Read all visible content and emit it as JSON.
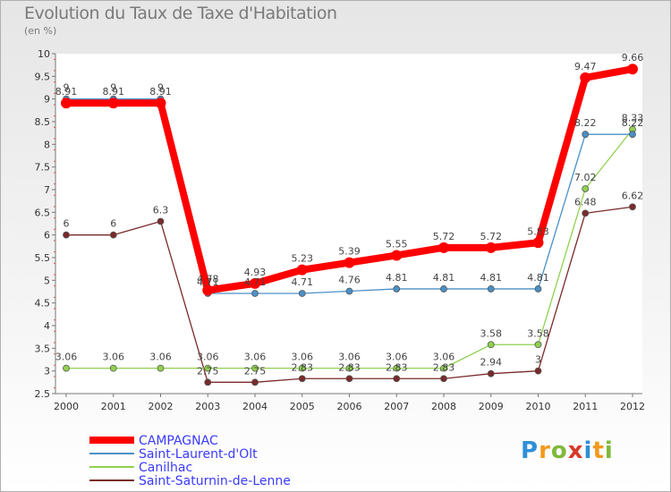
{
  "title": "Evolution du Taux de Taxe d'Habitation",
  "subtitle": "(en %)",
  "logo": "Proxiti",
  "chart_data": {
    "type": "line",
    "title": "Evolution du Taux de Taxe d'Habitation",
    "ylabel": "(en %)",
    "ylim": [
      2.5,
      10
    ],
    "grid": false,
    "legend_position": "bottom-left",
    "categories": [
      "2000",
      "2001",
      "2002",
      "2003",
      "2004",
      "2005",
      "2006",
      "2007",
      "2008",
      "2009",
      "2010",
      "2011",
      "2012"
    ],
    "yticks": [
      "2.5",
      "3",
      "3.5",
      "4",
      "4.5",
      "5",
      "5.5",
      "6",
      "6.5",
      "7",
      "7.5",
      "8",
      "8.5",
      "9",
      "9.5",
      "10"
    ],
    "series": [
      {
        "name": "CAMPAGNAC",
        "color": "#ff0000",
        "values": [
          8.91,
          8.91,
          8.91,
          4.78,
          4.93,
          5.23,
          5.39,
          5.55,
          5.72,
          5.72,
          5.83,
          9.47,
          9.66
        ],
        "labels": [
          "8.91",
          "8.91",
          "8.91",
          "4.78",
          "4.93",
          "5.23",
          "5.39",
          "5.55",
          "5.72",
          "5.72",
          "5.83",
          "9.47",
          "9.66"
        ]
      },
      {
        "name": "Saint-Laurent-d'Olt",
        "color": "#4a90c8",
        "values": [
          9,
          9,
          9,
          4.71,
          4.71,
          4.71,
          4.76,
          4.81,
          4.81,
          4.81,
          4.81,
          8.22,
          8.22
        ],
        "labels": [
          "9",
          "9",
          "9",
          "4.71",
          "4.71",
          "4.71",
          "4.76",
          "4.81",
          "4.81",
          "4.81",
          "4.81",
          "8.22",
          "8.22"
        ]
      },
      {
        "name": "Canilhac",
        "color": "#8fd14f",
        "values": [
          3.06,
          3.06,
          3.06,
          3.06,
          3.06,
          3.06,
          3.06,
          3.06,
          3.06,
          3.58,
          3.58,
          7.02,
          8.33
        ],
        "labels": [
          "3.06",
          "3.06",
          "3.06",
          "3.06",
          "3.06",
          "3.06",
          "3.06",
          "3.06",
          "3.06",
          "3.58",
          "3.58",
          "7.02",
          "8.33"
        ]
      },
      {
        "name": "Saint-Saturnin-de-Lenne",
        "color": "#7a2a2a",
        "values": [
          6,
          6,
          6.3,
          2.75,
          2.75,
          2.83,
          2.83,
          2.83,
          2.83,
          2.94,
          3,
          6.48,
          6.62
        ],
        "labels": [
          "6",
          "6",
          "6.3",
          "2.75",
          "2.75",
          "2.83",
          "2.83",
          "2.83",
          "2.83",
          "2.94",
          "3",
          "6.48",
          "6.62"
        ]
      }
    ]
  }
}
